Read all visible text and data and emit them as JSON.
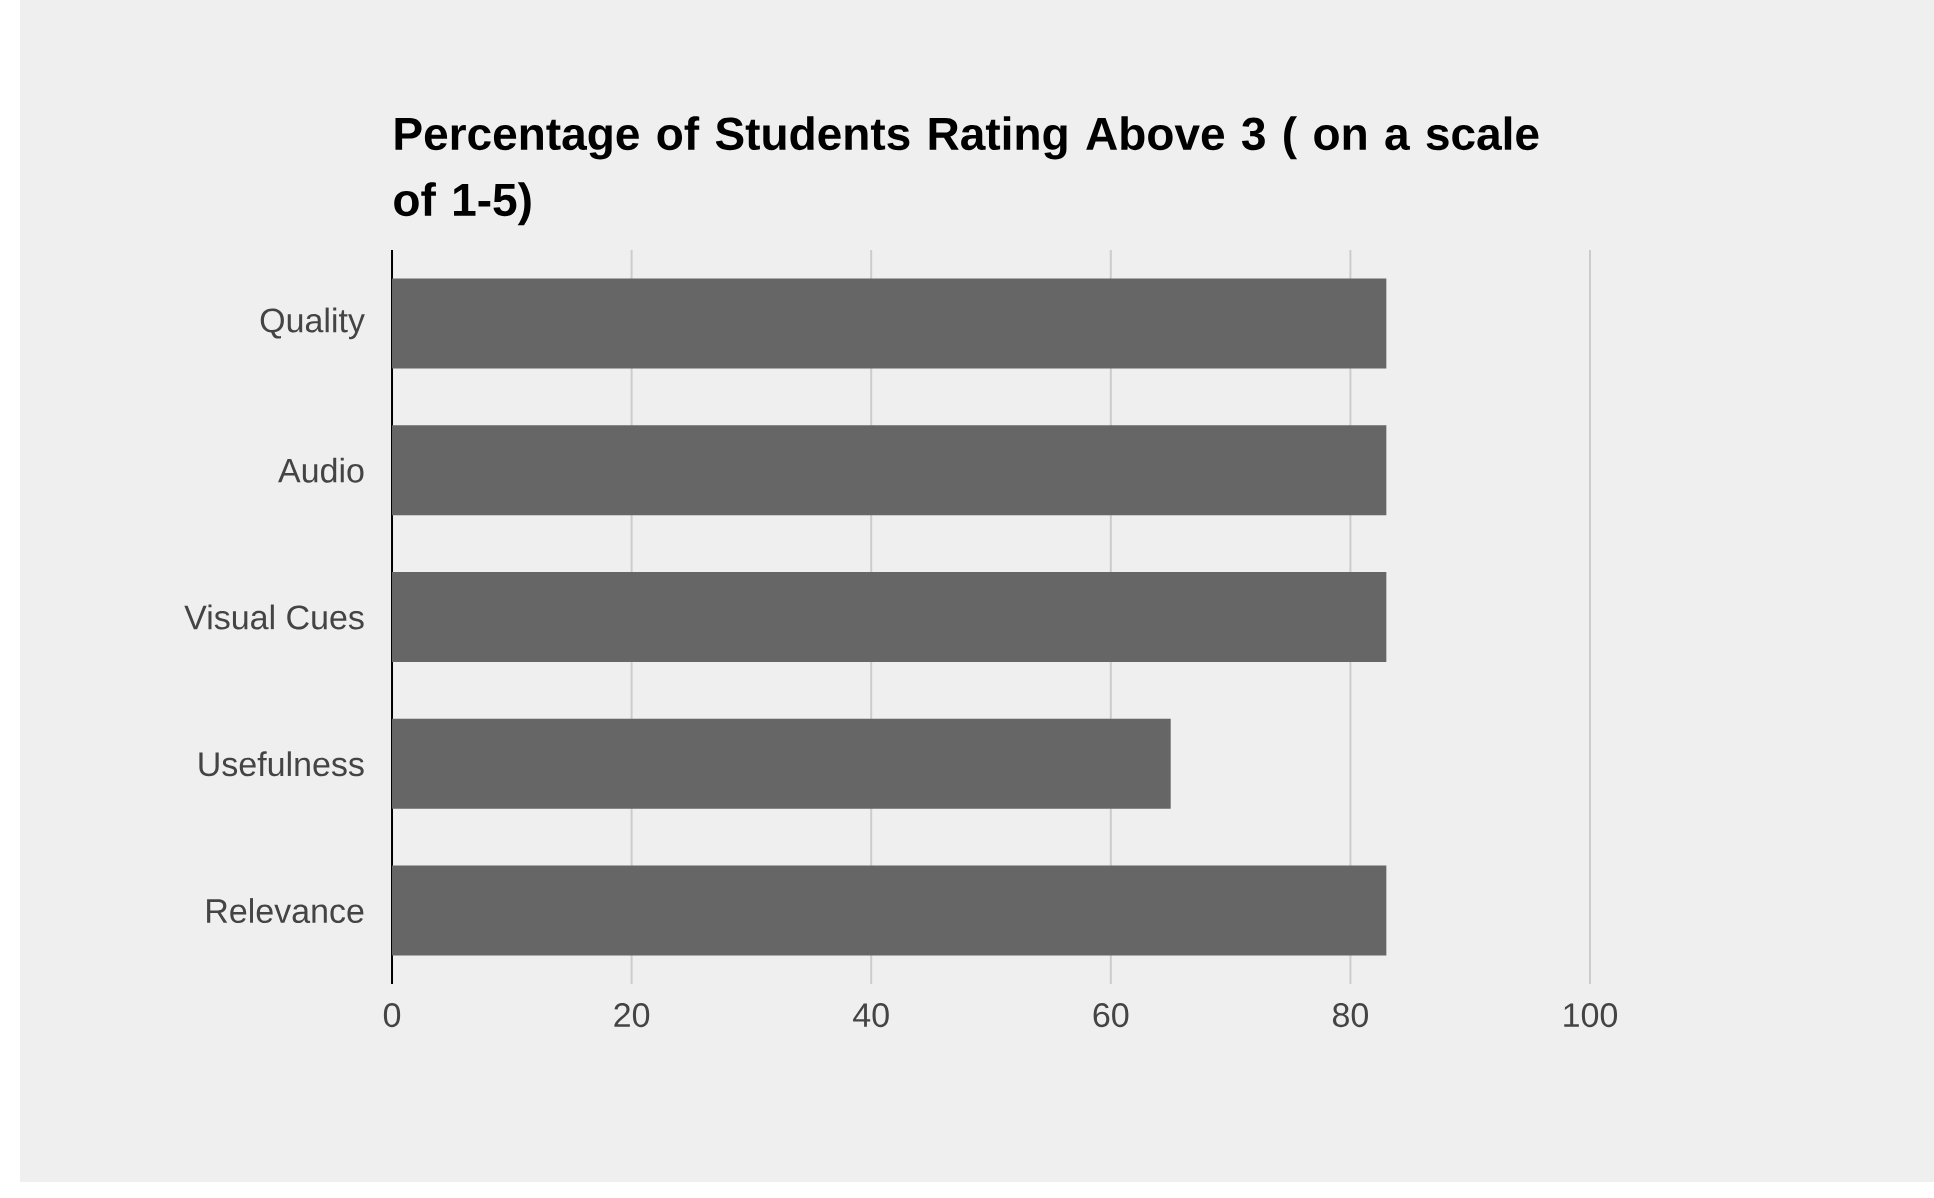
{
  "chart_data": {
    "type": "bar",
    "orientation": "horizontal",
    "title": "Percentage of Students Rating Above 3 ( on a scale of 1-5)",
    "categories": [
      "Quality",
      "Audio",
      "Visual Cues",
      "Usefulness",
      "Relevance"
    ],
    "values": [
      83,
      83,
      83,
      65,
      83
    ],
    "color": "#666666",
    "xlim": [
      0,
      100
    ],
    "xticks": [
      0,
      20,
      40,
      60,
      80,
      100
    ],
    "grid": "x"
  }
}
